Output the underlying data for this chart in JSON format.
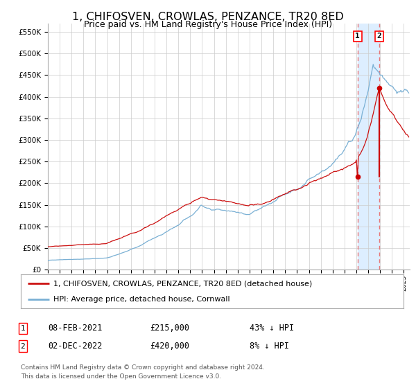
{
  "title": "1, CHIFOSVEN, CROWLAS, PENZANCE, TR20 8ED",
  "subtitle": "Price paid vs. HM Land Registry's House Price Index (HPI)",
  "ylabel_ticks": [
    "£0",
    "£50K",
    "£100K",
    "£150K",
    "£200K",
    "£250K",
    "£300K",
    "£350K",
    "£400K",
    "£450K",
    "£500K",
    "£550K"
  ],
  "ytick_values": [
    0,
    50000,
    100000,
    150000,
    200000,
    250000,
    300000,
    350000,
    400000,
    450000,
    500000,
    550000
  ],
  "ylim": [
    0,
    570000
  ],
  "xlim_start": 1995.0,
  "xlim_end": 2025.5,
  "point1_x": 2021.1,
  "point1_y": 215000,
  "point2_x": 2022.92,
  "point2_y": 420000,
  "shade_x_start": 2021.1,
  "shade_x_end": 2022.92,
  "dashed_line_color": "#e87878",
  "shade_color": "#ddeeff",
  "point_color": "#cc0000",
  "red_line_color": "#cc1111",
  "blue_line_color": "#7ab0d4",
  "background_color": "#ffffff",
  "grid_color": "#cccccc",
  "legend1_label": "1, CHIFOSVEN, CROWLAS, PENZANCE, TR20 8ED (detached house)",
  "legend2_label": "HPI: Average price, detached house, Cornwall",
  "table_row1": [
    "1",
    "08-FEB-2021",
    "£215,000",
    "43% ↓ HPI"
  ],
  "table_row2": [
    "2",
    "02-DEC-2022",
    "£420,000",
    "8% ↓ HPI"
  ],
  "footer1": "Contains HM Land Registry data © Crown copyright and database right 2024.",
  "footer2": "This data is licensed under the Open Government Licence v3.0."
}
